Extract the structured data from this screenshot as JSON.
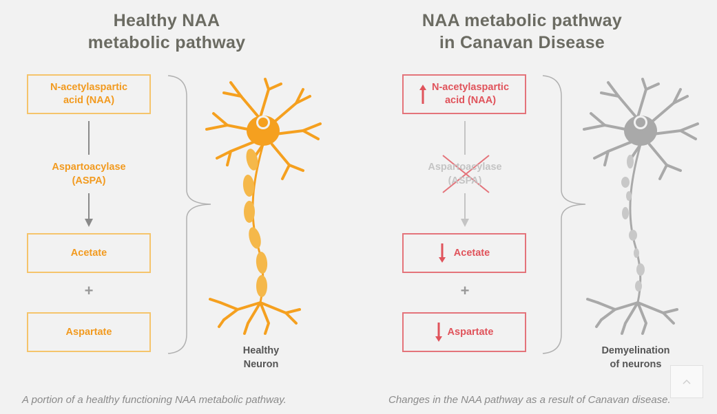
{
  "left": {
    "title_lines": [
      "Healthy NAA",
      "metabolic pathway"
    ],
    "box1_lines": [
      "N-acetylaspartic",
      "acid (NAA)"
    ],
    "enzyme_lines": [
      "Aspartoacylase",
      "(ASPA)"
    ],
    "box2": "Acetate",
    "plus": "+",
    "box3": "Aspartate",
    "neuron_label_lines": [
      "Healthy",
      "Neuron"
    ],
    "caption": "A portion of a healthy functioning NAA metabolic pathway."
  },
  "right": {
    "title_lines": [
      "NAA metabolic pathway",
      "in Canavan Disease"
    ],
    "box1_lines": [
      "N-acetylaspartic",
      "acid (NAA)"
    ],
    "enzyme_lines": [
      "Aspartoacylase",
      "(ASPA)"
    ],
    "box2": "Acetate",
    "plus": "+",
    "box3": "Aspartate",
    "neuron_label_lines": [
      "Demyelination",
      "of neurons"
    ],
    "caption": "Changes in the NAA pathway as a result of Canavan disease."
  },
  "colors": {
    "healthy": "#f29a1f",
    "disease": "#e0535b",
    "neuron_healthy": "#f5a01f",
    "neuron_disease": "#a9a9a9",
    "text_gray": "#6b6b62"
  },
  "icons": {
    "increase": "arrow-up-icon",
    "decrease": "arrow-down-icon",
    "blocked": "x-cross-icon",
    "scroll": "chevron-up-icon"
  }
}
